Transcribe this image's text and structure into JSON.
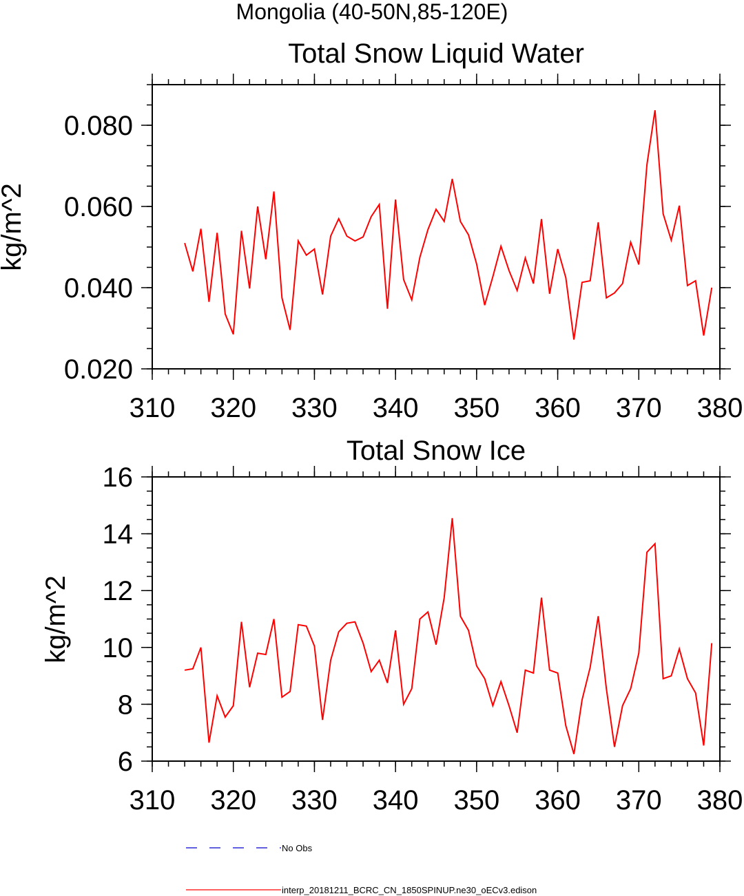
{
  "page_title": "Mongolia (40-50N,85-120E)",
  "legend": {
    "items": [
      {
        "label": "No Obs",
        "color": "#0000cc",
        "style": "dashed"
      },
      {
        "label": "interp_20181211_BCRC_CN_1850SPINUP.ne30_oECv3.edison",
        "color": "#ff0000",
        "style": "solid"
      }
    ]
  },
  "chart_data": [
    {
      "type": "line",
      "title": "Total Snow Liquid Water",
      "xlabel": "",
      "ylabel": "kg/m^2",
      "xlim": [
        310,
        380
      ],
      "ylim": [
        0.02,
        0.09
      ],
      "xticks": [
        310,
        320,
        330,
        340,
        350,
        360,
        370,
        380
      ],
      "xtick_labels": [
        "310",
        "320",
        "330",
        "340",
        "350",
        "360",
        "370",
        "380"
      ],
      "yticks": [
        0.02,
        0.04,
        0.06,
        0.08
      ],
      "ytick_labels": [
        "0.020",
        "0.040",
        "0.060",
        "0.080"
      ],
      "x_minor_step": 2,
      "y_minor_step": 0.005,
      "grid": false,
      "series": [
        {
          "color": "#ff0000",
          "x": [
            314,
            315,
            316,
            317,
            318,
            319,
            320,
            321,
            322,
            323,
            324,
            325,
            326,
            327,
            328,
            329,
            330,
            331,
            332,
            333,
            334,
            335,
            336,
            337,
            338,
            339,
            340,
            341,
            342,
            343,
            344,
            345,
            346,
            347,
            348,
            349,
            350,
            351,
            352,
            353,
            354,
            355,
            356,
            357,
            358,
            359,
            360,
            361,
            362,
            363,
            364,
            365,
            366,
            367,
            368,
            369,
            370,
            371,
            372,
            373,
            374,
            375,
            376,
            377,
            378,
            379
          ],
          "values": [
            0.051,
            0.044,
            0.0545,
            0.0365,
            0.0535,
            0.0335,
            0.0285,
            0.054,
            0.0398,
            0.06,
            0.047,
            0.0637,
            0.0375,
            0.0296,
            0.0515,
            0.048,
            0.0495,
            0.0383,
            0.0527,
            0.057,
            0.0527,
            0.0515,
            0.0525,
            0.0575,
            0.0605,
            0.0348,
            0.0617,
            0.042,
            0.037,
            0.0475,
            0.0543,
            0.0593,
            0.0563,
            0.0668,
            0.0563,
            0.053,
            0.0458,
            0.0357,
            0.0427,
            0.0502,
            0.0442,
            0.0393,
            0.0473,
            0.041,
            0.0569,
            0.0385,
            0.0495,
            0.0425,
            0.0272,
            0.0413,
            0.0417,
            0.0561,
            0.0375,
            0.0387,
            0.041,
            0.0512,
            0.0457,
            0.0703,
            0.0837,
            0.0582,
            0.0517,
            0.0602,
            0.0405,
            0.0417,
            0.0282,
            0.04
          ]
        }
      ]
    },
    {
      "type": "line",
      "title": "Total Snow Ice",
      "xlabel": "",
      "ylabel": "kg/m^2",
      "xlim": [
        310,
        380
      ],
      "ylim": [
        6,
        16
      ],
      "xticks": [
        310,
        320,
        330,
        340,
        350,
        360,
        370,
        380
      ],
      "xtick_labels": [
        "310",
        "320",
        "330",
        "340",
        "350",
        "360",
        "370",
        "380"
      ],
      "yticks": [
        6,
        8,
        10,
        12,
        14,
        16
      ],
      "ytick_labels": [
        "6",
        "8",
        "10",
        "12",
        "14",
        "16"
      ],
      "x_minor_step": 2,
      "y_minor_step": 0.5,
      "grid": false,
      "series": [
        {
          "color": "#ff0000",
          "x": [
            314,
            315,
            316,
            317,
            318,
            319,
            320,
            321,
            322,
            323,
            324,
            325,
            326,
            327,
            328,
            329,
            330,
            331,
            332,
            333,
            334,
            335,
            336,
            337,
            338,
            339,
            340,
            341,
            342,
            343,
            344,
            345,
            346,
            347,
            348,
            349,
            350,
            351,
            352,
            353,
            354,
            355,
            356,
            357,
            358,
            359,
            360,
            361,
            362,
            363,
            364,
            365,
            366,
            367,
            368,
            369,
            370,
            371,
            372,
            373,
            374,
            375,
            376,
            377,
            378,
            379
          ],
          "values": [
            9.2,
            9.25,
            10.0,
            6.65,
            8.3,
            7.55,
            7.95,
            10.9,
            8.6,
            9.8,
            9.75,
            11.0,
            8.25,
            8.45,
            10.8,
            10.75,
            10.05,
            7.45,
            9.55,
            10.55,
            10.85,
            10.9,
            10.15,
            9.15,
            9.55,
            8.75,
            10.6,
            8.0,
            8.55,
            11.0,
            11.25,
            10.1,
            11.75,
            14.55,
            11.1,
            10.6,
            9.35,
            8.9,
            7.95,
            8.8,
            7.95,
            7.0,
            9.2,
            9.1,
            11.75,
            9.2,
            9.1,
            7.25,
            6.25,
            8.15,
            9.3,
            11.1,
            8.55,
            6.5,
            7.95,
            8.55,
            9.8,
            13.35,
            13.65,
            8.9,
            9.0,
            9.95,
            8.9,
            8.4,
            6.55,
            10.15
          ]
        }
      ]
    }
  ]
}
